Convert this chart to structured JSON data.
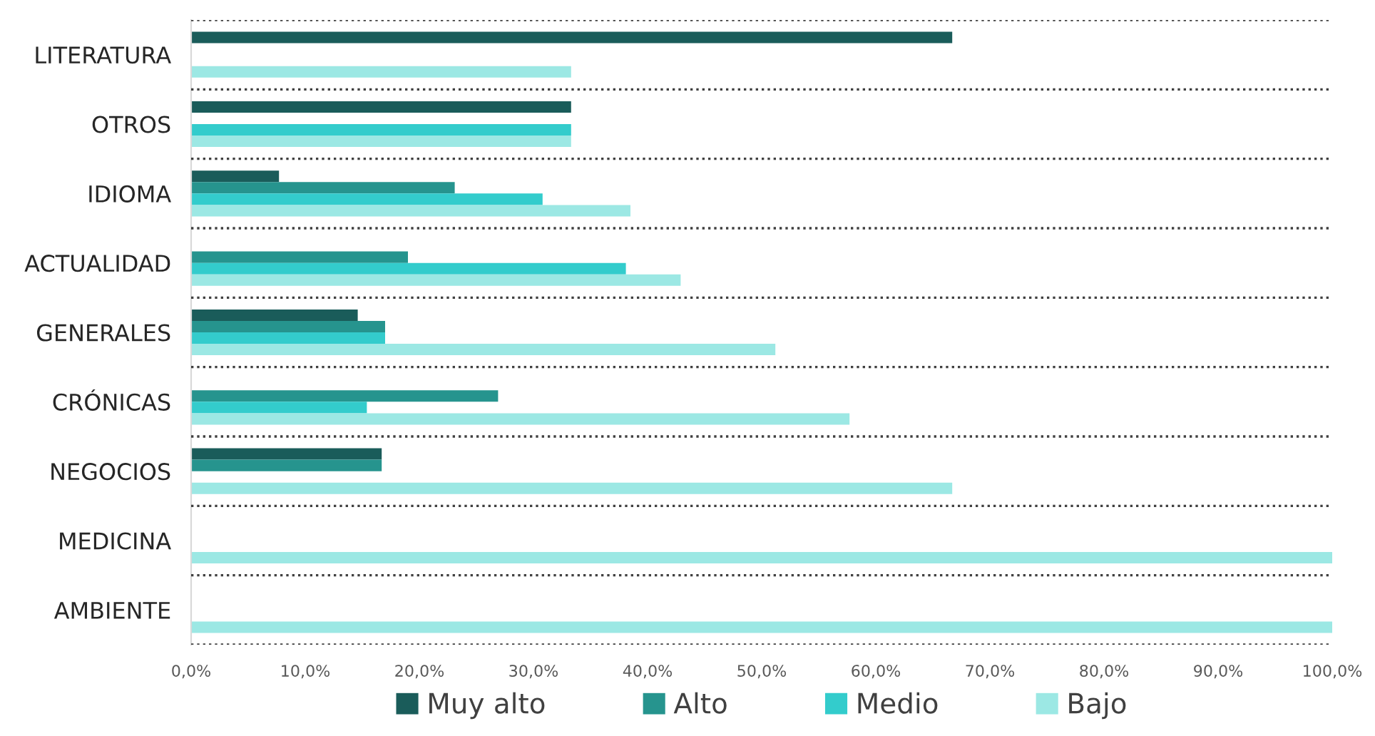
{
  "chart_data": {
    "type": "bar",
    "orientation": "horizontal",
    "categories": [
      "LITERATURA",
      "OTROS",
      "IDIOMA",
      "ACTUALIDAD",
      "GENERALES",
      "CRÓNICAS",
      "NEGOCIOS",
      "MEDICINA",
      "AMBIENTE"
    ],
    "series": [
      {
        "name": "Muy alto",
        "color": "#1a5c5a",
        "values": [
          66.7,
          33.3,
          7.7,
          null,
          14.6,
          null,
          16.7,
          null,
          null
        ]
      },
      {
        "name": "Alto",
        "color": "#26948e",
        "values": [
          null,
          null,
          23.1,
          19.0,
          17.0,
          26.9,
          16.7,
          null,
          null
        ]
      },
      {
        "name": "Medio",
        "color": "#33cccc",
        "values": [
          null,
          33.3,
          30.8,
          38.1,
          17.0,
          15.4,
          null,
          null,
          null
        ]
      },
      {
        "name": "Bajo",
        "color": "#9ce8e4",
        "values": [
          33.3,
          33.3,
          38.5,
          42.9,
          51.2,
          57.7,
          66.7,
          100,
          100
        ]
      }
    ],
    "xlim": [
      0,
      100
    ],
    "xticks": [
      {
        "value": 0,
        "label": "0,0%"
      },
      {
        "value": 10,
        "label": "10,0%"
      },
      {
        "value": 20,
        "label": "20,0%"
      },
      {
        "value": 30,
        "label": "30,0%"
      },
      {
        "value": 40,
        "label": "40,0%"
      },
      {
        "value": 50,
        "label": "50,0%"
      },
      {
        "value": 60,
        "label": "60,0%"
      },
      {
        "value": 70,
        "label": "70,0%"
      },
      {
        "value": 80,
        "label": "80,0%"
      },
      {
        "value": 90,
        "label": "90,0%"
      },
      {
        "value": 100,
        "label": "100,0%"
      }
    ],
    "grid": "y",
    "legend": "bottom"
  }
}
